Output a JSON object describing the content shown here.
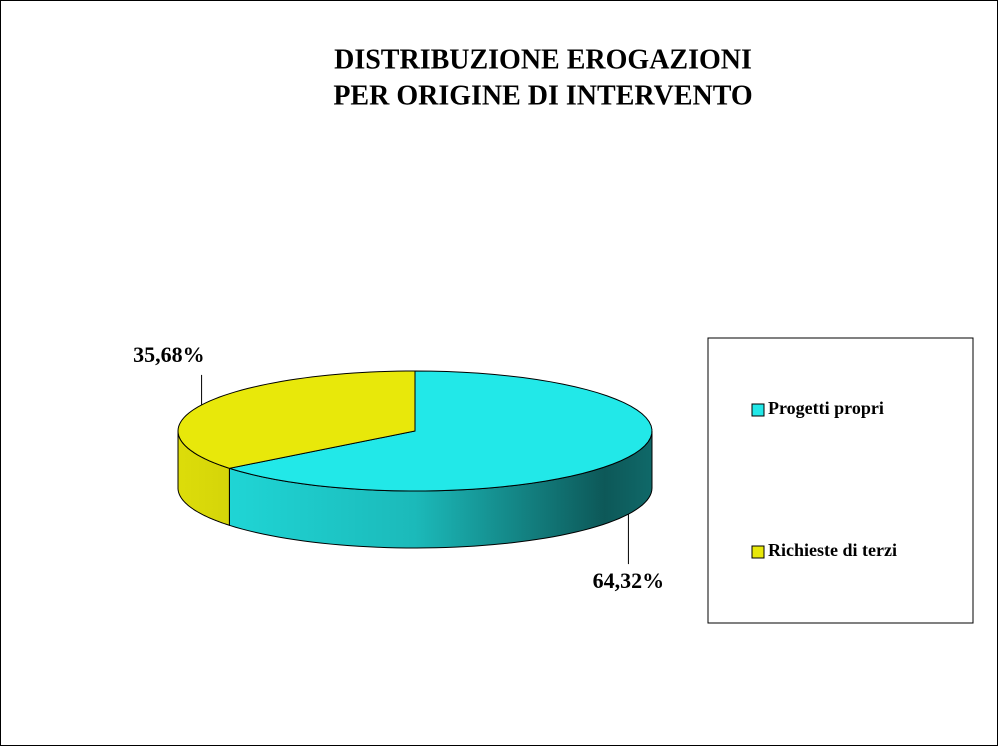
{
  "chart_data": {
    "type": "pie3d",
    "title": [
      "DISTRIBUZIONE EROGAZIONI",
      "PER ORIGINE DI INTERVENTO"
    ],
    "categories": [
      "Progetti propri",
      "Richieste di terzi"
    ],
    "values": [
      64.32,
      35.68
    ],
    "value_labels": [
      "64,32%",
      "35,68%"
    ],
    "colors": [
      "#22e8e8",
      "#e8e80a"
    ],
    "legend": "right"
  }
}
